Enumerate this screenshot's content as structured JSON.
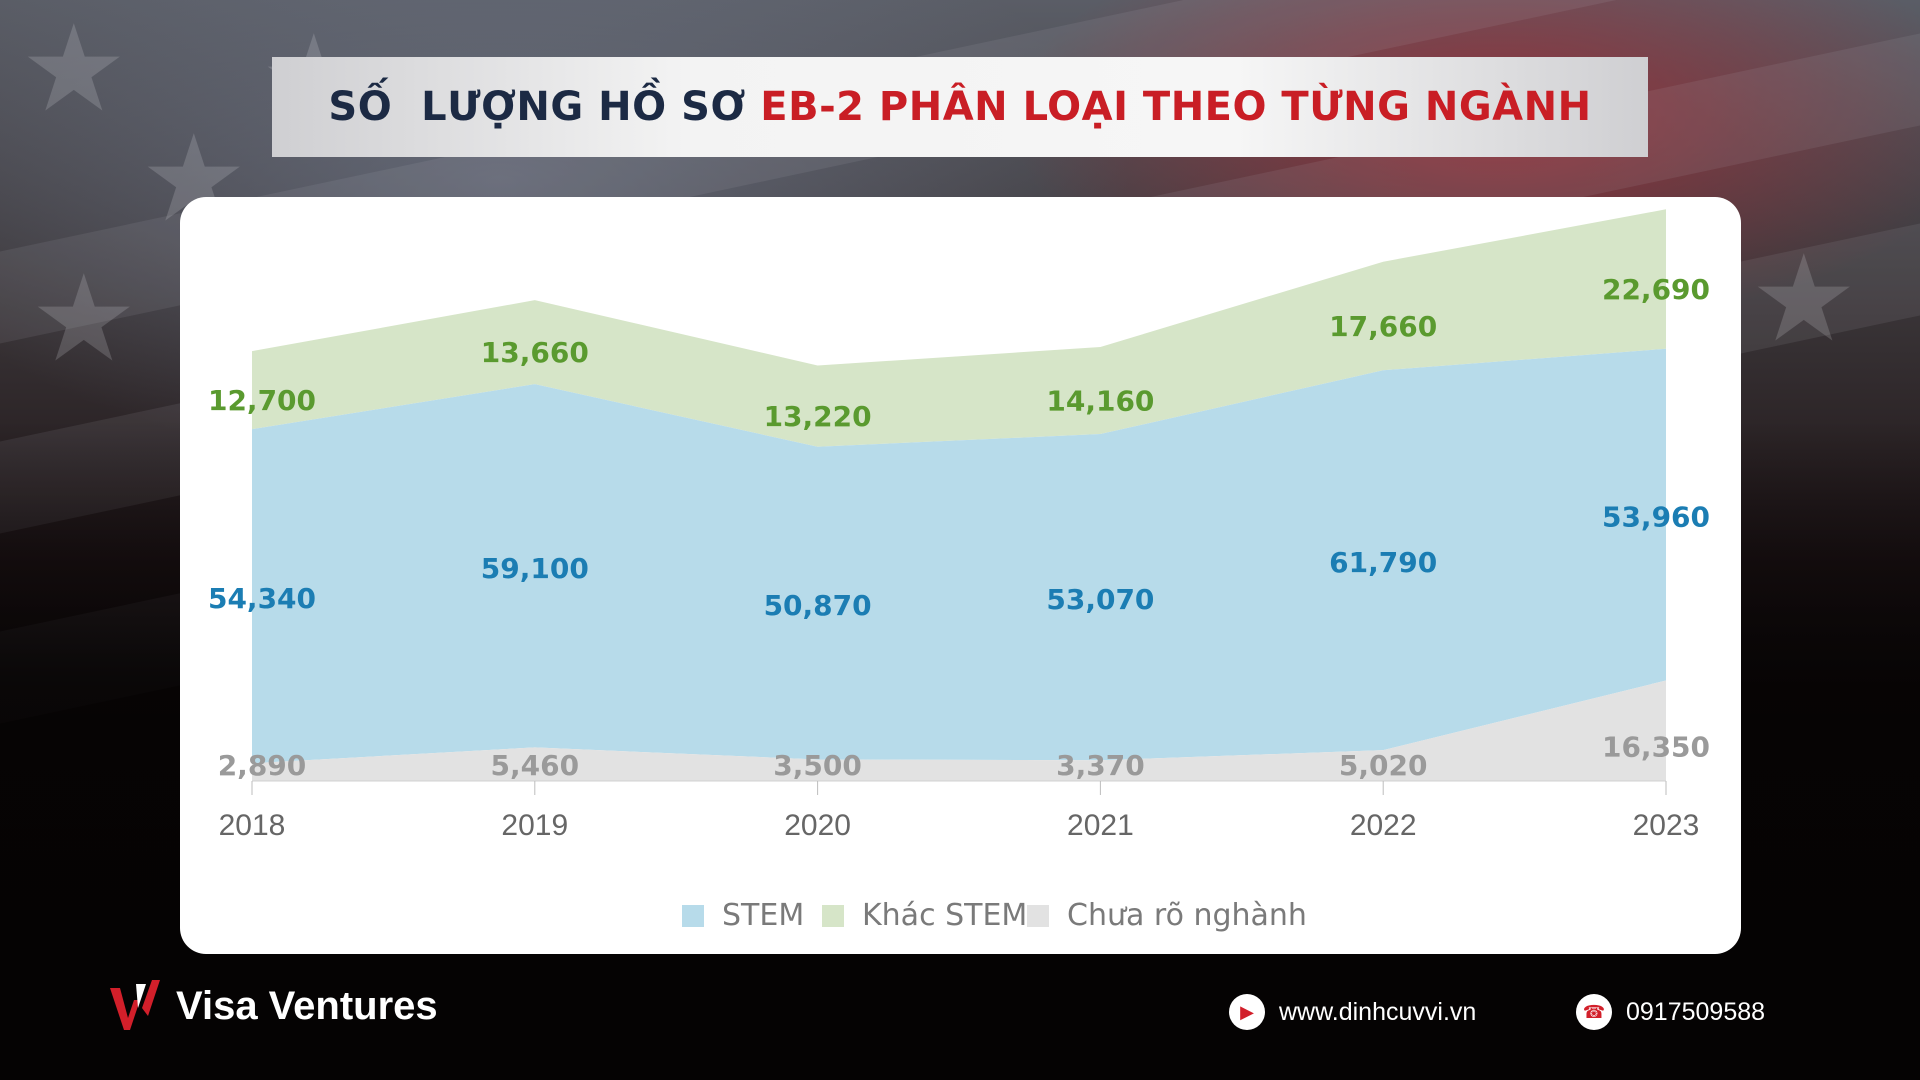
{
  "title": {
    "part1": "SỐ  LƯỢNG HỒ SƠ ",
    "part2": "EB-2 PHÂN LOẠI THEO TỪNG NGÀNH"
  },
  "colors": {
    "title_dark": "#1c2a44",
    "title_red": "#c91e25",
    "stem": "#b7dbea",
    "stem_label": "#1b7db3",
    "non_stem": "#d6e5c8",
    "non_stem_label": "#5a9a2f",
    "unclassified": "#e2e2e2",
    "unclassified_label": "#9a9a9a"
  },
  "chart_data": {
    "type": "area",
    "stacked": true,
    "categories": [
      "2018",
      "2019",
      "2020",
      "2021",
      "2022",
      "2023"
    ],
    "series": [
      {
        "name": "Chưa rõ nghành",
        "values": [
          2890,
          5460,
          3500,
          3370,
          5020,
          16350
        ],
        "labels": [
          "2,890",
          "5,460",
          "3,500",
          "3,370",
          "5,020",
          "16,350"
        ]
      },
      {
        "name": "STEM",
        "values": [
          54340,
          59100,
          50870,
          53070,
          61790,
          53960
        ],
        "labels": [
          "54,340",
          "59,100",
          "50,870",
          "53,070",
          "61,790",
          "53,960"
        ]
      },
      {
        "name": "Khác STEM",
        "values": [
          12700,
          13660,
          13220,
          14160,
          17660,
          22690
        ],
        "labels": [
          "12,700",
          "13,660",
          "13,220",
          "14,160",
          "17,660",
          "22,690"
        ]
      }
    ],
    "legend": [
      "STEM",
      "Khác STEM",
      "Chưa rõ nghành"
    ],
    "legend_position": "bottom",
    "grid": false,
    "ylim": [
      0,
      95000
    ]
  },
  "footer": {
    "brand": "Visa Ventures",
    "website": "www.dinhcuvvi.vn",
    "phone": "0917509588"
  }
}
